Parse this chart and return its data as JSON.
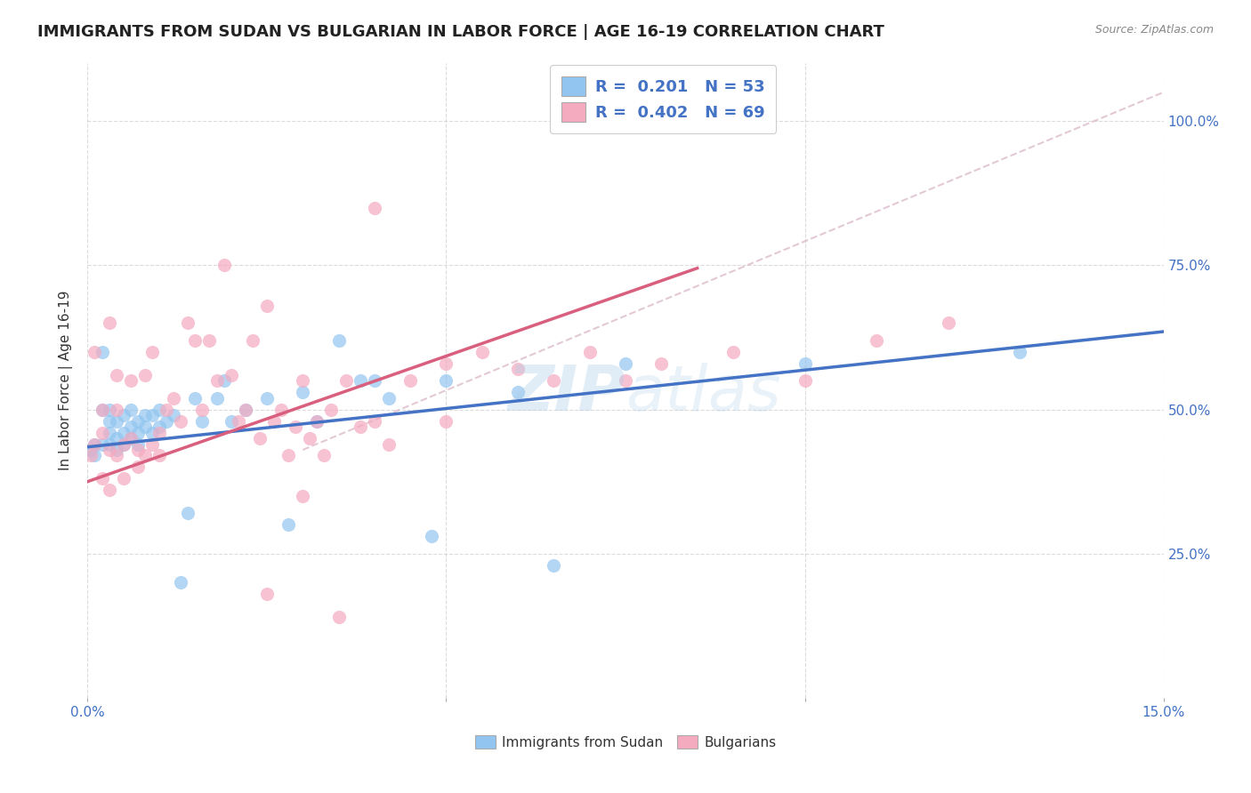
{
  "title": "IMMIGRANTS FROM SUDAN VS BULGARIAN IN LABOR FORCE | AGE 16-19 CORRELATION CHART",
  "source": "Source: ZipAtlas.com",
  "ylabel": "In Labor Force | Age 16-19",
  "xlim": [
    0.0,
    0.15
  ],
  "ylim": [
    0.0,
    1.1
  ],
  "yticks": [
    0.0,
    0.25,
    0.5,
    0.75,
    1.0
  ],
  "xticks": [
    0.0,
    0.05,
    0.1,
    0.15
  ],
  "sudan_color": "#92C5F0",
  "bulgarian_color": "#F4AABF",
  "sudan_line_color": "#4472C4",
  "bulgarian_line_color": "#D95F7F",
  "diagonal_color": "#DDBBCC",
  "R_sudan": 0.201,
  "N_sudan": 53,
  "R_bulgarian": 0.402,
  "N_bulgarian": 69,
  "sudan_line_x0": 0.0,
  "sudan_line_y0": 0.435,
  "sudan_line_x1": 0.15,
  "sudan_line_y1": 0.635,
  "bulgarian_line_x0": 0.0,
  "bulgarian_line_y0": 0.375,
  "bulgarian_line_x1": 0.085,
  "bulgarian_line_y1": 0.745,
  "sudan_scatter_x": [
    0.0005,
    0.001,
    0.001,
    0.002,
    0.002,
    0.002,
    0.003,
    0.003,
    0.003,
    0.003,
    0.004,
    0.004,
    0.004,
    0.005,
    0.005,
    0.005,
    0.006,
    0.006,
    0.006,
    0.007,
    0.007,
    0.007,
    0.008,
    0.008,
    0.009,
    0.009,
    0.01,
    0.01,
    0.011,
    0.012,
    0.013,
    0.014,
    0.015,
    0.016,
    0.018,
    0.019,
    0.02,
    0.022,
    0.025,
    0.028,
    0.03,
    0.032,
    0.035,
    0.038,
    0.04,
    0.042,
    0.048,
    0.05,
    0.06,
    0.065,
    0.075,
    0.1,
    0.13
  ],
  "sudan_scatter_y": [
    0.43,
    0.42,
    0.44,
    0.6,
    0.5,
    0.44,
    0.46,
    0.48,
    0.5,
    0.44,
    0.45,
    0.48,
    0.43,
    0.46,
    0.49,
    0.44,
    0.47,
    0.5,
    0.45,
    0.46,
    0.48,
    0.44,
    0.47,
    0.49,
    0.46,
    0.49,
    0.47,
    0.5,
    0.48,
    0.49,
    0.2,
    0.32,
    0.52,
    0.48,
    0.52,
    0.55,
    0.48,
    0.5,
    0.52,
    0.3,
    0.53,
    0.48,
    0.62,
    0.55,
    0.55,
    0.52,
    0.28,
    0.55,
    0.53,
    0.23,
    0.58,
    0.58,
    0.6
  ],
  "bulgarian_scatter_x": [
    0.0005,
    0.001,
    0.001,
    0.002,
    0.002,
    0.002,
    0.003,
    0.003,
    0.003,
    0.004,
    0.004,
    0.004,
    0.005,
    0.005,
    0.006,
    0.006,
    0.007,
    0.007,
    0.008,
    0.008,
    0.009,
    0.009,
    0.01,
    0.01,
    0.011,
    0.012,
    0.013,
    0.014,
    0.015,
    0.016,
    0.017,
    0.018,
    0.019,
    0.02,
    0.021,
    0.022,
    0.023,
    0.024,
    0.025,
    0.026,
    0.027,
    0.028,
    0.029,
    0.03,
    0.031,
    0.032,
    0.033,
    0.034,
    0.036,
    0.038,
    0.04,
    0.042,
    0.045,
    0.05,
    0.055,
    0.06,
    0.065,
    0.07,
    0.075,
    0.08,
    0.09,
    0.1,
    0.11,
    0.12,
    0.03,
    0.025,
    0.035,
    0.04,
    0.05
  ],
  "bulgarian_scatter_y": [
    0.42,
    0.44,
    0.6,
    0.38,
    0.46,
    0.5,
    0.43,
    0.36,
    0.65,
    0.5,
    0.42,
    0.56,
    0.44,
    0.38,
    0.45,
    0.55,
    0.43,
    0.4,
    0.42,
    0.56,
    0.44,
    0.6,
    0.46,
    0.42,
    0.5,
    0.52,
    0.48,
    0.65,
    0.62,
    0.5,
    0.62,
    0.55,
    0.75,
    0.56,
    0.48,
    0.5,
    0.62,
    0.45,
    0.68,
    0.48,
    0.5,
    0.42,
    0.47,
    0.55,
    0.45,
    0.48,
    0.42,
    0.5,
    0.55,
    0.47,
    0.48,
    0.44,
    0.55,
    0.48,
    0.6,
    0.57,
    0.55,
    0.6,
    0.55,
    0.58,
    0.6,
    0.55,
    0.62,
    0.65,
    0.35,
    0.18,
    0.14,
    0.85,
    0.58
  ],
  "background_color": "#FFFFFF",
  "grid_color": "#CCCCCC",
  "title_fontsize": 13,
  "label_fontsize": 11,
  "tick_fontsize": 11,
  "legend_fontsize": 13
}
